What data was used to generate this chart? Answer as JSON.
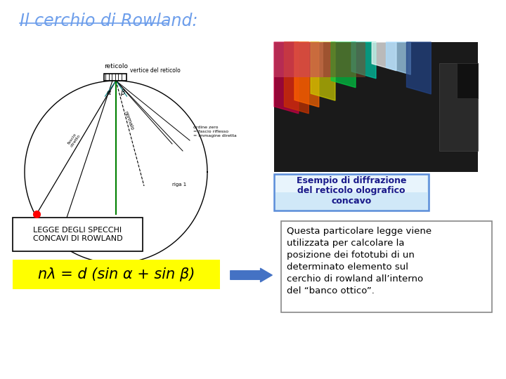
{
  "title": "Il cerchio di Rowland:",
  "title_color": "#6d9eeb",
  "title_fontsize": 17,
  "bg_color": "#ffffff",
  "label_box_text": "Esempio di diffrazione\ndel reticolo olografico\nconcavo",
  "label_box_bg_top": "#c9dff5",
  "label_box_bg_bot": "#e8f2fc",
  "label_box_border": "#5b8dd9",
  "legge_title": "LEGGE DEGLI SPECCHI\nCONCAVI DI ROWLAND",
  "legge_box_border": "#000000",
  "legge_box_bg": "#ffffff",
  "formula_text": "nλ = d (sin α + sin β)",
  "formula_bg": "#ffff00",
  "formula_fontsize": 15,
  "arrow_color": "#4472c4",
  "desc_text": "Questa particolare legge viene\nutilizzata per calcolare la\nposizione dei fototubi di un\ndeterminato elemento sul\ncerchio di rowland all’interno\ndel “banco ottico”.",
  "desc_box_border": "#888888",
  "desc_box_bg": "#ffffff",
  "desc_fontsize": 9.5
}
